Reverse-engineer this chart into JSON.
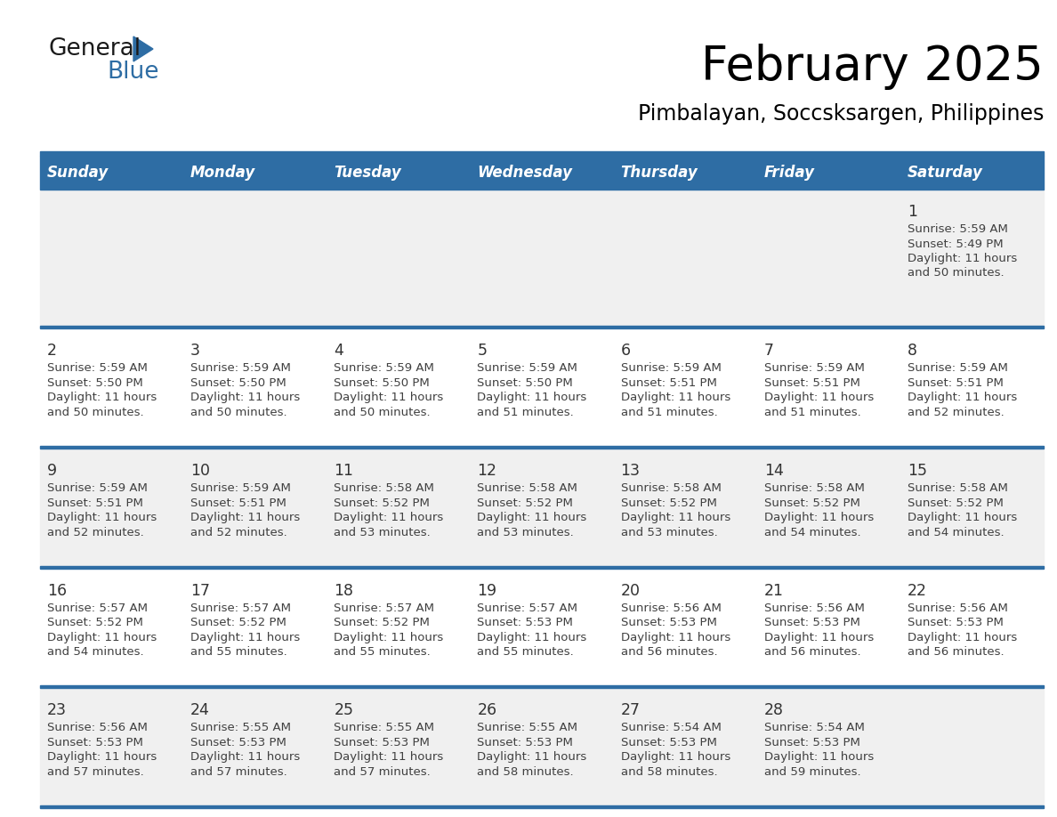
{
  "title": "February 2025",
  "subtitle": "Pimbalayan, Soccsksargen, Philippines",
  "days_of_week": [
    "Sunday",
    "Monday",
    "Tuesday",
    "Wednesday",
    "Thursday",
    "Friday",
    "Saturday"
  ],
  "header_bg": "#2E6DA4",
  "header_text_color": "#FFFFFF",
  "row_colors": [
    "#F0F0F0",
    "#FFFFFF"
  ],
  "divider_color": "#2E6DA4",
  "text_color": "#404040",
  "day_num_color": "#333333",
  "calendar_data": [
    {
      "day": 1,
      "col": 6,
      "row": 0,
      "sunrise": "5:59 AM",
      "sunset": "5:49 PM",
      "daylight": "11 hours",
      "daylight2": "and 50 minutes."
    },
    {
      "day": 2,
      "col": 0,
      "row": 1,
      "sunrise": "5:59 AM",
      "sunset": "5:50 PM",
      "daylight": "11 hours",
      "daylight2": "and 50 minutes."
    },
    {
      "day": 3,
      "col": 1,
      "row": 1,
      "sunrise": "5:59 AM",
      "sunset": "5:50 PM",
      "daylight": "11 hours",
      "daylight2": "and 50 minutes."
    },
    {
      "day": 4,
      "col": 2,
      "row": 1,
      "sunrise": "5:59 AM",
      "sunset": "5:50 PM",
      "daylight": "11 hours",
      "daylight2": "and 50 minutes."
    },
    {
      "day": 5,
      "col": 3,
      "row": 1,
      "sunrise": "5:59 AM",
      "sunset": "5:50 PM",
      "daylight": "11 hours",
      "daylight2": "and 51 minutes."
    },
    {
      "day": 6,
      "col": 4,
      "row": 1,
      "sunrise": "5:59 AM",
      "sunset": "5:51 PM",
      "daylight": "11 hours",
      "daylight2": "and 51 minutes."
    },
    {
      "day": 7,
      "col": 5,
      "row": 1,
      "sunrise": "5:59 AM",
      "sunset": "5:51 PM",
      "daylight": "11 hours",
      "daylight2": "and 51 minutes."
    },
    {
      "day": 8,
      "col": 6,
      "row": 1,
      "sunrise": "5:59 AM",
      "sunset": "5:51 PM",
      "daylight": "11 hours",
      "daylight2": "and 52 minutes."
    },
    {
      "day": 9,
      "col": 0,
      "row": 2,
      "sunrise": "5:59 AM",
      "sunset": "5:51 PM",
      "daylight": "11 hours",
      "daylight2": "and 52 minutes."
    },
    {
      "day": 10,
      "col": 1,
      "row": 2,
      "sunrise": "5:59 AM",
      "sunset": "5:51 PM",
      "daylight": "11 hours",
      "daylight2": "and 52 minutes."
    },
    {
      "day": 11,
      "col": 2,
      "row": 2,
      "sunrise": "5:58 AM",
      "sunset": "5:52 PM",
      "daylight": "11 hours",
      "daylight2": "and 53 minutes."
    },
    {
      "day": 12,
      "col": 3,
      "row": 2,
      "sunrise": "5:58 AM",
      "sunset": "5:52 PM",
      "daylight": "11 hours",
      "daylight2": "and 53 minutes."
    },
    {
      "day": 13,
      "col": 4,
      "row": 2,
      "sunrise": "5:58 AM",
      "sunset": "5:52 PM",
      "daylight": "11 hours",
      "daylight2": "and 53 minutes."
    },
    {
      "day": 14,
      "col": 5,
      "row": 2,
      "sunrise": "5:58 AM",
      "sunset": "5:52 PM",
      "daylight": "11 hours",
      "daylight2": "and 54 minutes."
    },
    {
      "day": 15,
      "col": 6,
      "row": 2,
      "sunrise": "5:58 AM",
      "sunset": "5:52 PM",
      "daylight": "11 hours",
      "daylight2": "and 54 minutes."
    },
    {
      "day": 16,
      "col": 0,
      "row": 3,
      "sunrise": "5:57 AM",
      "sunset": "5:52 PM",
      "daylight": "11 hours",
      "daylight2": "and 54 minutes."
    },
    {
      "day": 17,
      "col": 1,
      "row": 3,
      "sunrise": "5:57 AM",
      "sunset": "5:52 PM",
      "daylight": "11 hours",
      "daylight2": "and 55 minutes."
    },
    {
      "day": 18,
      "col": 2,
      "row": 3,
      "sunrise": "5:57 AM",
      "sunset": "5:52 PM",
      "daylight": "11 hours",
      "daylight2": "and 55 minutes."
    },
    {
      "day": 19,
      "col": 3,
      "row": 3,
      "sunrise": "5:57 AM",
      "sunset": "5:53 PM",
      "daylight": "11 hours",
      "daylight2": "and 55 minutes."
    },
    {
      "day": 20,
      "col": 4,
      "row": 3,
      "sunrise": "5:56 AM",
      "sunset": "5:53 PM",
      "daylight": "11 hours",
      "daylight2": "and 56 minutes."
    },
    {
      "day": 21,
      "col": 5,
      "row": 3,
      "sunrise": "5:56 AM",
      "sunset": "5:53 PM",
      "daylight": "11 hours",
      "daylight2": "and 56 minutes."
    },
    {
      "day": 22,
      "col": 6,
      "row": 3,
      "sunrise": "5:56 AM",
      "sunset": "5:53 PM",
      "daylight": "11 hours",
      "daylight2": "and 56 minutes."
    },
    {
      "day": 23,
      "col": 0,
      "row": 4,
      "sunrise": "5:56 AM",
      "sunset": "5:53 PM",
      "daylight": "11 hours",
      "daylight2": "and 57 minutes."
    },
    {
      "day": 24,
      "col": 1,
      "row": 4,
      "sunrise": "5:55 AM",
      "sunset": "5:53 PM",
      "daylight": "11 hours",
      "daylight2": "and 57 minutes."
    },
    {
      "day": 25,
      "col": 2,
      "row": 4,
      "sunrise": "5:55 AM",
      "sunset": "5:53 PM",
      "daylight": "11 hours",
      "daylight2": "and 57 minutes."
    },
    {
      "day": 26,
      "col": 3,
      "row": 4,
      "sunrise": "5:55 AM",
      "sunset": "5:53 PM",
      "daylight": "11 hours",
      "daylight2": "and 58 minutes."
    },
    {
      "day": 27,
      "col": 4,
      "row": 4,
      "sunrise": "5:54 AM",
      "sunset": "5:53 PM",
      "daylight": "11 hours",
      "daylight2": "and 58 minutes."
    },
    {
      "day": 28,
      "col": 5,
      "row": 4,
      "sunrise": "5:54 AM",
      "sunset": "5:53 PM",
      "daylight": "11 hours",
      "daylight2": "and 59 minutes."
    }
  ],
  "num_rows": 5,
  "num_cols": 7,
  "logo_color_general": "#1a1a1a",
  "logo_color_blue": "#2E6DA4",
  "logo_triangle_color": "#2E6DA4",
  "fig_width": 11.88,
  "fig_height": 9.18,
  "dpi": 100
}
